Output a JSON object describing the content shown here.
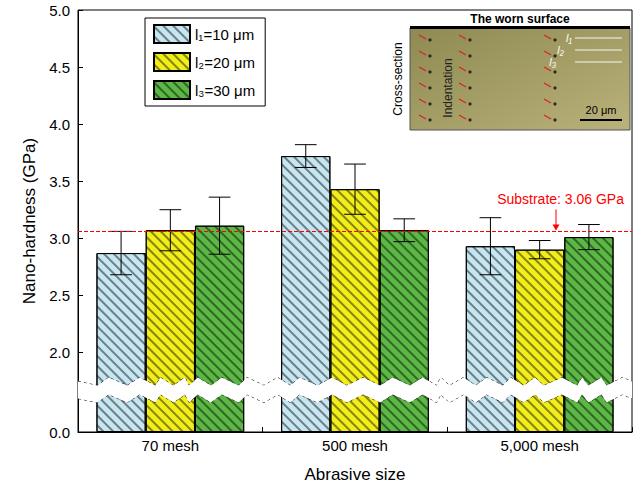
{
  "chart_data": {
    "type": "bar",
    "xlabel": "Abrasive size",
    "ylabel": "Nano-hardness (GPa)",
    "categories": [
      "70 mesh",
      "500 mesh",
      "5,000 mesh"
    ],
    "series": [
      {
        "name": "l₁=10 μm",
        "color": "#c6e6f2",
        "values": [
          2.87,
          3.72,
          2.93
        ],
        "errors": [
          0.19,
          0.1,
          0.25
        ]
      },
      {
        "name": "l₂=20 μm",
        "color": "#f2ee1a",
        "values": [
          3.07,
          3.43,
          2.9
        ],
        "errors": [
          0.18,
          0.22,
          0.08
        ]
      },
      {
        "name": "l₃=30 μm",
        "color": "#5cb845",
        "values": [
          3.11,
          3.07,
          3.01
        ],
        "errors": [
          0.25,
          0.1,
          0.11
        ]
      }
    ],
    "ylim": [
      0,
      5
    ],
    "yticks": [
      {
        "value": 0,
        "label": "0.0"
      },
      {
        "value": 2,
        "label": "2.0"
      },
      2.5,
      {
        "value": 3,
        "label": "3.0"
      },
      3.5,
      {
        "value": 4,
        "label": "4.0"
      },
      4.5,
      {
        "value": 5,
        "label": "5.0"
      }
    ],
    "ybreak": [
      0.3,
      1.75
    ],
    "grid": false,
    "legend": "upper left",
    "reference_line": {
      "value": 3.06,
      "label": "Substrate: 3.06 GPa",
      "color": "#ff0000"
    },
    "inset": {
      "title": "The worn surface",
      "side_label": "Cross-section",
      "label": "Indentation",
      "scale_bar": "20 μm",
      "markers": [
        "l₁",
        "l₂",
        "l₃"
      ]
    }
  }
}
